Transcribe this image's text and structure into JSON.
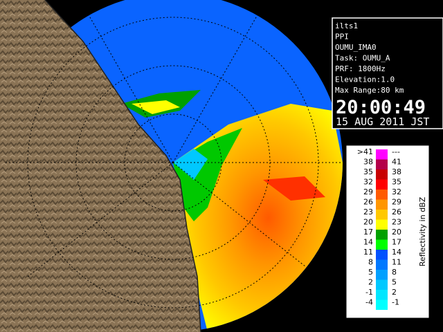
{
  "info": {
    "lines": [
      "ilts1",
      "PPI",
      "OUMU_IMA0",
      "Task: OUMU_A",
      "PRF: 1800Hz",
      "Elevation:1.0",
      "Max Range:80 km"
    ],
    "time": "20:00:49",
    "date": "15 AUG 2011 JST"
  },
  "legend": {
    "title": "Reflectivity in dBZ",
    "rows": [
      [
        ">41",
        "---"
      ],
      [
        "38",
        "41"
      ],
      [
        "35",
        "38"
      ],
      [
        "32",
        "35"
      ],
      [
        "29",
        "32"
      ],
      [
        "26",
        "29"
      ],
      [
        "23",
        "26"
      ],
      [
        "20",
        "23"
      ],
      [
        "17",
        "20"
      ],
      [
        "14",
        "17"
      ],
      [
        "11",
        "14"
      ],
      [
        "8",
        "11"
      ],
      [
        "5",
        "8"
      ],
      [
        "2",
        "5"
      ],
      [
        "-1",
        "2"
      ],
      [
        "-4",
        "-1"
      ]
    ],
    "colors": [
      "#ff00ff",
      "#b4004a",
      "#c80000",
      "#ff0000",
      "#ff5a00",
      "#ff9600",
      "#ffc800",
      "#ffff00",
      "#00a000",
      "#00ff00",
      "#0050ff",
      "#0078ff",
      "#00a0ff",
      "#00c8ff",
      "#00e6ff",
      "#00ffff"
    ]
  }
}
